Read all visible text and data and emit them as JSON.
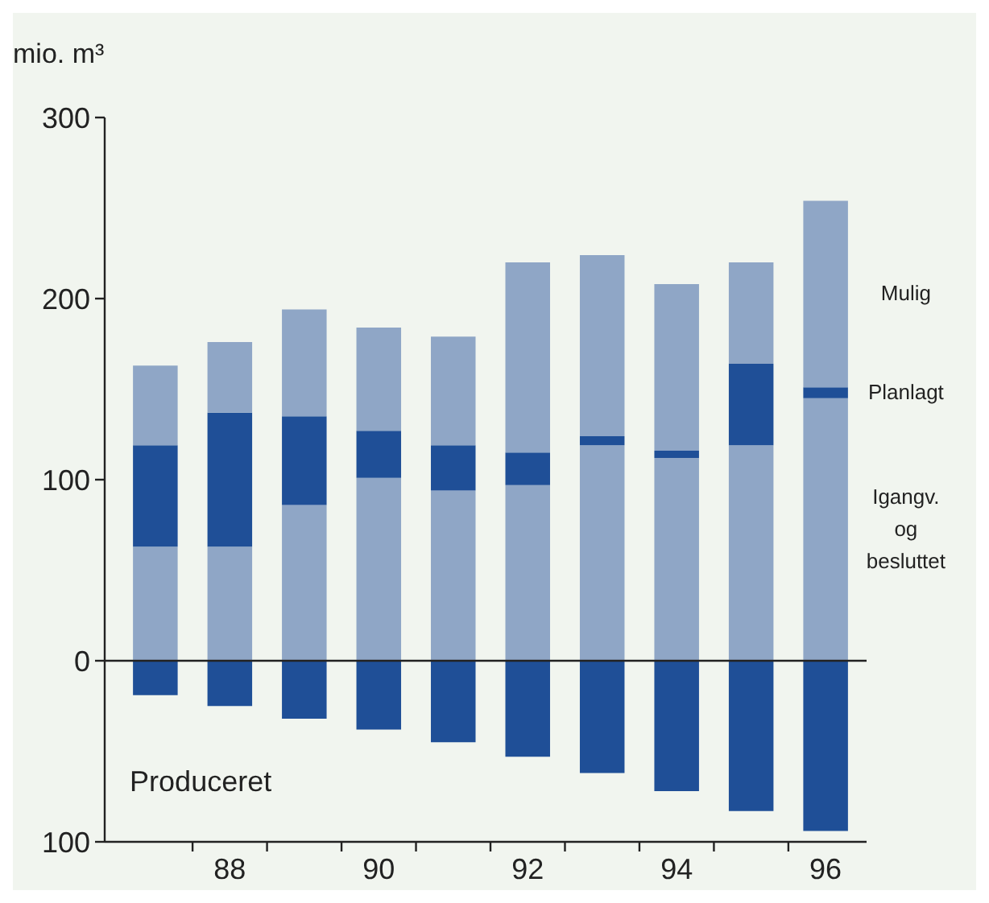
{
  "chart_data": {
    "type": "bar",
    "stacked": true,
    "ylabel": "mio. m³",
    "categories": [
      null,
      "88",
      null,
      "90",
      null,
      "92",
      null,
      "94",
      null,
      "96"
    ],
    "series": [
      {
        "name": "Igangv. og besluttet",
        "color": "#8fa6c6",
        "values": [
          63,
          63,
          86,
          101,
          94,
          97,
          119,
          112,
          119,
          145
        ]
      },
      {
        "name": "Planlagt",
        "color": "#1f4f97",
        "values": [
          56,
          74,
          49,
          26,
          25,
          18,
          5,
          4,
          45,
          6
        ]
      },
      {
        "name": "Mulig",
        "color": "#8fa6c6",
        "values": [
          44,
          39,
          59,
          57,
          60,
          105,
          100,
          92,
          56,
          103
        ]
      },
      {
        "name": "Produceret",
        "color": "#1f4f97",
        "values": [
          -19,
          -25,
          -32,
          -38,
          -45,
          -53,
          -62,
          -72,
          -83,
          -94
        ]
      }
    ],
    "ylim": [
      -100,
      300
    ],
    "yticks": [
      {
        "value": -100,
        "label": "100"
      },
      0,
      100,
      200,
      300
    ]
  }
}
